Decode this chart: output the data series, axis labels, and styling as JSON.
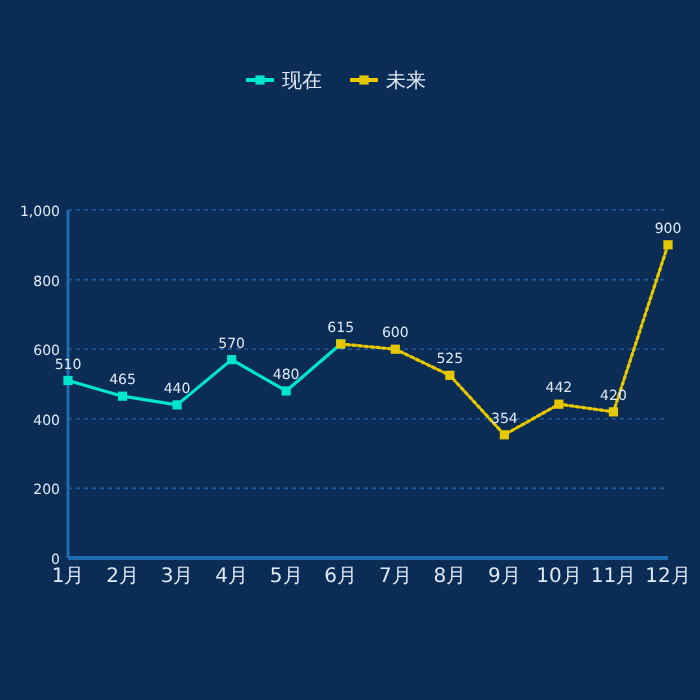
{
  "chart_data": {
    "type": "line",
    "categories": [
      "1月",
      "2月",
      "3月",
      "4月",
      "5月",
      "6月",
      "7月",
      "8月",
      "9月",
      "10月",
      "11月",
      "12月"
    ],
    "series": [
      {
        "name": "现在",
        "color": "#00e5d0",
        "line_style": "solid",
        "values": [
          510,
          465,
          440,
          570,
          480,
          615,
          null,
          null,
          null,
          null,
          null,
          null
        ]
      },
      {
        "name": "未来",
        "color": "#e6c800",
        "line_style": "dotted",
        "values": [
          null,
          null,
          null,
          null,
          null,
          615,
          600,
          525,
          354,
          442,
          420,
          900
        ],
        "value_labels": [
          null,
          null,
          null,
          null,
          null,
          null,
          "600",
          "525",
          "354",
          "442",
          "420",
          "900"
        ]
      }
    ],
    "data_labels": true,
    "ylim": [
      0,
      1000
    ],
    "yticks": [
      0,
      200,
      400,
      600,
      800,
      {
        "value": 1000,
        "label": "1,000"
      }
    ],
    "grid": "y",
    "legend": "top",
    "marker": "square"
  }
}
